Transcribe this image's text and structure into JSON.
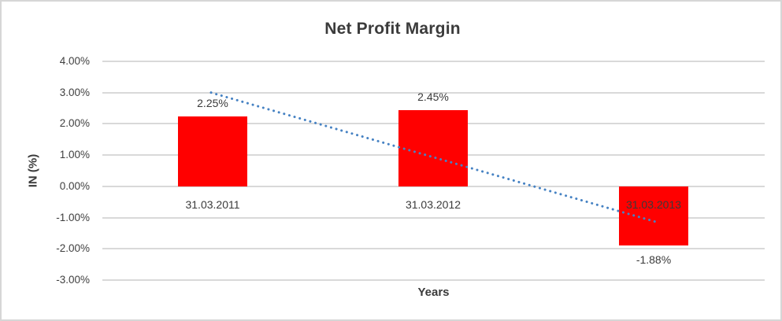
{
  "window": {
    "background": "#FFFFFF",
    "border_color": "#D6D6D6"
  },
  "chart_data": {
    "type": "bar",
    "title": "Net Profit Margin",
    "categories": [
      "31.03.2011",
      "31.03.2012",
      "31.03.2013"
    ],
    "values": [
      2.25,
      2.45,
      -1.88
    ],
    "data_labels": [
      "2.25%",
      "2.45%",
      "-1.88%"
    ],
    "xlabel": "Years",
    "ylabel": "IN (%)",
    "ylim": [
      -3,
      4
    ],
    "ytick_step": 1,
    "ytick_labels": [
      "4.00%",
      "3.00%",
      "2.00%",
      "1.00%",
      "0.00%",
      "-1.00%",
      "-2.00%",
      "-3.00%"
    ],
    "grid": true,
    "legend": "none",
    "bar_color": "#FF0000",
    "gridline_color": "#D9D9D9",
    "text_color": "#3F3F3F",
    "trendline": {
      "type": "linear",
      "style": "dotted",
      "color": "#4682C3",
      "start_value_pct": 3.0,
      "end_value_pct": -1.13
    }
  }
}
